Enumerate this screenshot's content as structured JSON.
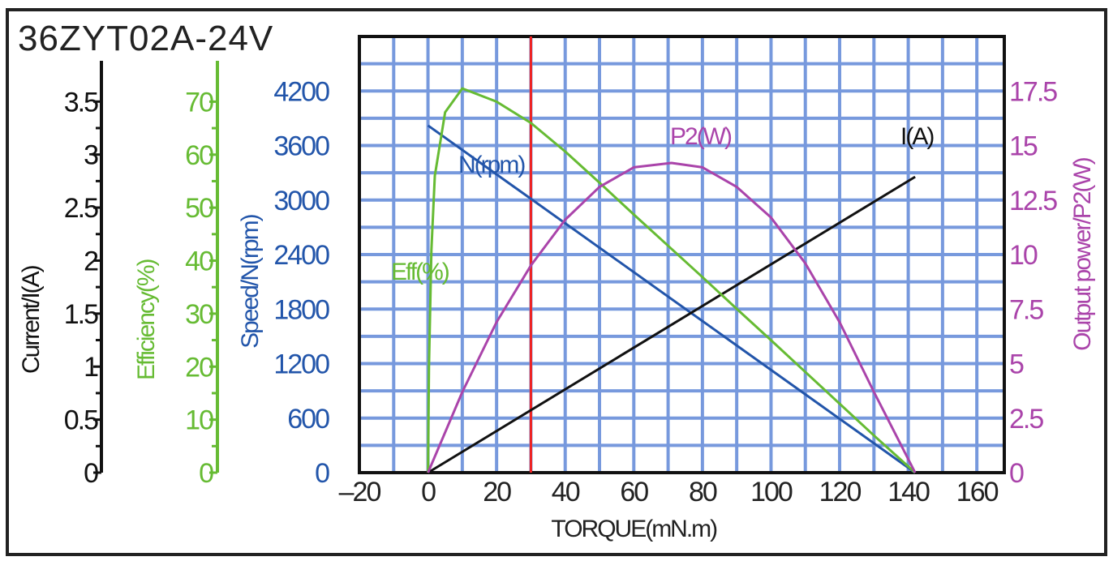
{
  "chart_data": {
    "type": "line",
    "title": "36ZYT02A-24V",
    "xlabel": "TORQUE(mN.m)",
    "xlim": [
      -20,
      168
    ],
    "xticks": [
      "-20",
      "0",
      "20",
      "40",
      "60",
      "80",
      "100",
      "120",
      "140",
      "160"
    ],
    "grid": true,
    "marker_line": {
      "x": 30,
      "color": "#ee2222"
    },
    "axes": {
      "current": {
        "label": "Current/I(A)",
        "ylim": [
          0,
          4.114
        ],
        "ticks": [
          "0",
          "0.5",
          "1",
          "1.5",
          "2",
          "2.5",
          "3",
          "3.5"
        ],
        "color": "#111111"
      },
      "efficiency": {
        "label": "Efficiency(%)",
        "ylim": [
          0,
          82.3
        ],
        "ticks": [
          "0",
          "10",
          "20",
          "30",
          "40",
          "50",
          "60",
          "70"
        ],
        "color": "#66bb33"
      },
      "speed": {
        "label": "Speed/N(rpm)",
        "ylim": [
          0,
          4800
        ],
        "ticks": [
          "0",
          "600",
          "1200",
          "1800",
          "2400",
          "3000",
          "3600",
          "4200"
        ],
        "color": "#2255aa"
      },
      "power": {
        "label": "Output power/P2(W)",
        "ylim": [
          0,
          20
        ],
        "ticks": [
          "0",
          "2.5",
          "5",
          "7.5",
          "10",
          "12.5",
          "15",
          "17.5"
        ],
        "color": "#aa44aa"
      }
    },
    "series": [
      {
        "name": "N(rpm)",
        "axis": "speed",
        "color": "#2255aa",
        "x": [
          0,
          142
        ],
        "y": [
          3820,
          0
        ]
      },
      {
        "name": "I(A)",
        "axis": "current",
        "color": "#111111",
        "x": [
          0,
          142
        ],
        "y": [
          0,
          2.79
        ]
      },
      {
        "name": "Eff(%)",
        "axis": "efficiency",
        "color": "#66bb33",
        "x": [
          0,
          0.3,
          1,
          2,
          5,
          10,
          20,
          30,
          40,
          50,
          60,
          70,
          80,
          90,
          100,
          110,
          120,
          130,
          136,
          142
        ],
        "y": [
          0,
          20,
          42,
          56,
          68,
          72.5,
          70,
          66,
          60.6,
          54.7,
          48.7,
          42.8,
          36.9,
          30.9,
          25,
          19,
          13,
          7,
          3.5,
          0
        ]
      },
      {
        "name": "P2(W)",
        "axis": "power",
        "color": "#aa44aa",
        "x": [
          0,
          10,
          20,
          30,
          40,
          50,
          60,
          71,
          80,
          90,
          100,
          110,
          120,
          130,
          142
        ],
        "y": [
          0,
          3.7,
          6.9,
          9.5,
          11.6,
          13.1,
          14.0,
          14.2,
          14.0,
          13.1,
          11.7,
          9.6,
          6.9,
          3.7,
          0
        ]
      }
    ]
  }
}
